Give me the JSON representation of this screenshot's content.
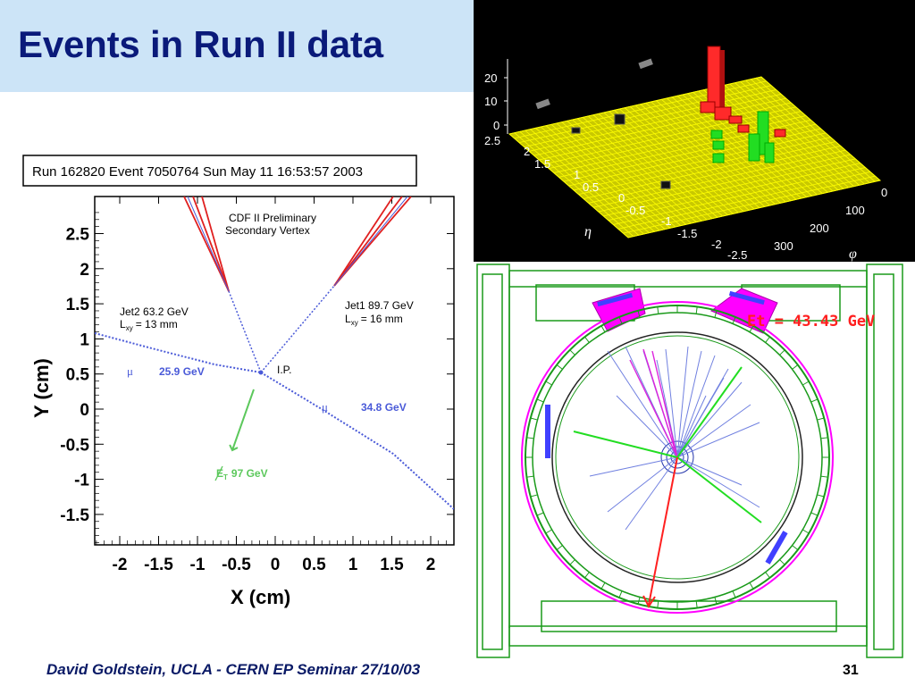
{
  "slide": {
    "title": "Events in Run II data",
    "footer": "David Goldstein, UCLA - CERN EP Seminar 27/10/03",
    "page_number": "31"
  },
  "colors": {
    "title_band": "#cce4f7",
    "title_text": "#0a1a7a",
    "muon_tracks": "#4a5ad8",
    "jet_tracks": "#e02020",
    "met_arrow": "#5cc85c",
    "lego_grid": "#ffff00",
    "lego_em_tower": "#ff2a2a",
    "lego_had_tower": "#22dd22",
    "detector_frame": "#1a9a1a",
    "detector_calorimeter": "#ff00ff",
    "detector_tracks": "#7080e0"
  },
  "vertex_display": {
    "header": "Run 162820 Event 7050764 Sun May 11 16:53:57 2003",
    "title_line1": "CDF II Preliminary",
    "title_line2": "Secondary Vertex",
    "xlabel": "X (cm)",
    "ylabel": "Y (cm)",
    "x_ticks": [
      "-2",
      "-1.5",
      "-1",
      "-0.5",
      "0",
      "0.5",
      "1",
      "1.5",
      "2"
    ],
    "y_ticks": [
      "2.5",
      "2",
      "1.5",
      "1",
      "0.5",
      "0",
      "-0.5",
      "-1",
      "-1.5"
    ],
    "jet2_label": "Jet2 63.2 GeV",
    "jet2_lxy_label": "L",
    "jet2_lxy_sub": "xy",
    "jet2_lxy_value": "= 13 mm",
    "jet1_label": "Jet1 89.7 GeV",
    "jet1_lxy_label": "L",
    "jet1_lxy_sub": "xy",
    "jet1_lxy_value": "= 16 mm",
    "ip_label": "I.P.",
    "muon_symbol": "μ",
    "muon1_energy": "25.9 GeV",
    "muon2_energy": "34.8 GeV",
    "met_symbol": "E",
    "met_sub": "T",
    "met_value": "97 GeV"
  },
  "lego_plot": {
    "eta_label": "η",
    "phi_label": "φ",
    "z_ticks": [
      "20",
      "10",
      "0"
    ],
    "eta_ticks": [
      "2.5",
      "2",
      "1.5",
      "1",
      "0.5",
      "0",
      "-0.5",
      "-1",
      "-1.5",
      "-2",
      "-2.5"
    ],
    "phi_ticks": [
      "0",
      "100",
      "200",
      "300"
    ]
  },
  "detector_display": {
    "et_label": "Et = 43.43 GeV"
  }
}
